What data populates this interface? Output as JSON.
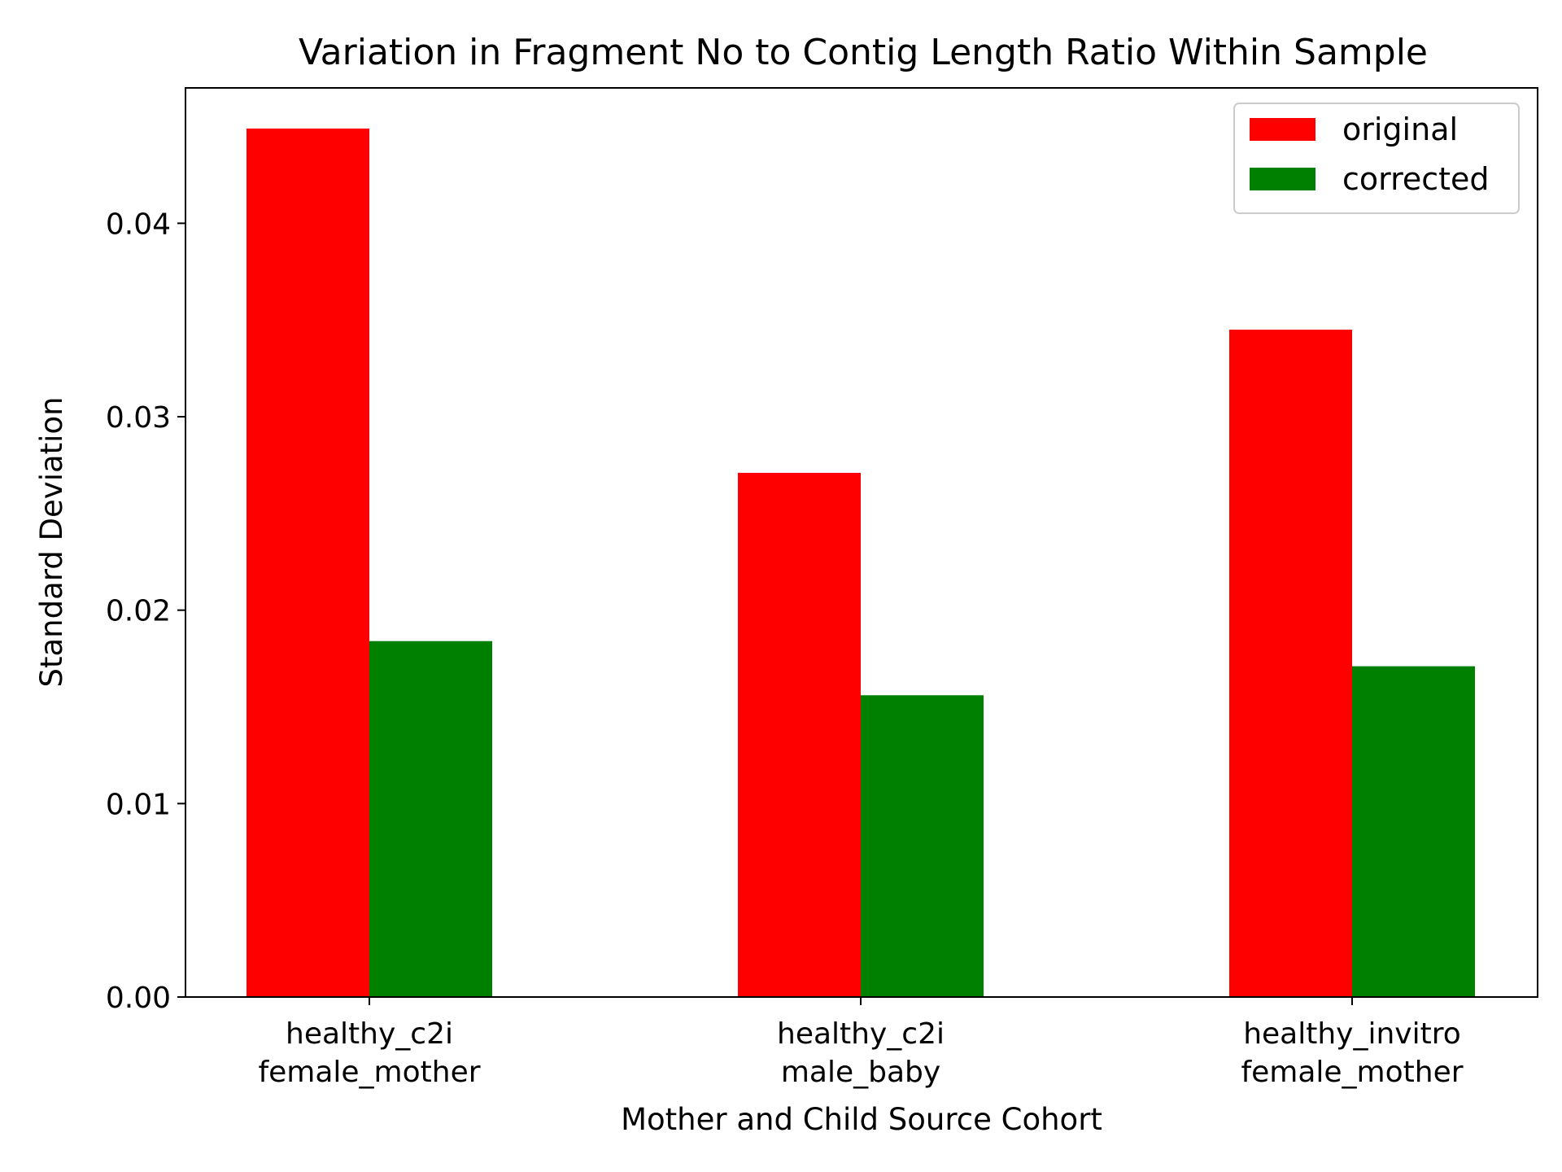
{
  "chart_data": {
    "type": "bar",
    "title": "Variation in Fragment No to Contig Length Ratio Within Sample",
    "xlabel": "Mother and Child Source Cohort",
    "ylabel": "Standard Deviation",
    "categories": [
      [
        "healthy_c2i",
        "female_mother"
      ],
      [
        "healthy_c2i",
        "male_baby"
      ],
      [
        "healthy_invitro",
        "female_mother"
      ]
    ],
    "series": [
      {
        "name": "original",
        "color": "#ff0000",
        "values": [
          0.0449,
          0.0271,
          0.0345
        ]
      },
      {
        "name": "corrected",
        "color": "#008000",
        "values": [
          0.0184,
          0.0156,
          0.0171
        ]
      }
    ],
    "ylim": [
      0,
      0.047
    ],
    "yticks": [
      "0.00",
      "0.01",
      "0.02",
      "0.03",
      "0.04"
    ],
    "ytick_values": [
      0.0,
      0.01,
      0.02,
      0.03,
      0.04
    ],
    "grid": false,
    "legend_position": "top-right"
  }
}
